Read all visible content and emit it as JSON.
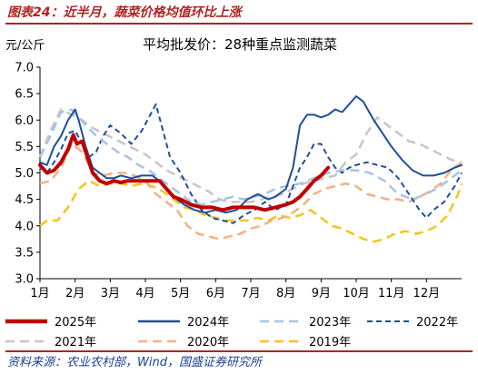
{
  "figure_label": "图表24：近半月，蔬菜价格均值环比上涨",
  "source": "资料来源：农业农村部，Wind，国盛证券研究所",
  "chart_data": {
    "type": "line",
    "title": "平均批发价：28种重点监测蔬菜",
    "ylabel": "元/公斤",
    "ylim": [
      3.0,
      7.0
    ],
    "yticks": [
      "3.0",
      "3.5",
      "4.0",
      "4.5",
      "5.0",
      "5.5",
      "6.0",
      "6.5",
      "7.0"
    ],
    "xlim": [
      1,
      13
    ],
    "xticks": [
      "1月",
      "2月",
      "3月",
      "4月",
      "5月",
      "6月",
      "7月",
      "8月",
      "9月",
      "10月",
      "11月",
      "12月"
    ],
    "grid": false,
    "legend_position": "bottom",
    "series": [
      {
        "name": "2025年",
        "color": "#c00000",
        "dash": "solid",
        "width": 4,
        "x": [
          1.0,
          1.2,
          1.4,
          1.6,
          1.8,
          1.95,
          2.05,
          2.2,
          2.35,
          2.5,
          2.7,
          2.9,
          3.1,
          3.3,
          3.5,
          3.8,
          4.1,
          4.4,
          4.6,
          4.8,
          5.0,
          5.3,
          5.6,
          5.9,
          6.2,
          6.5,
          6.8,
          7.1,
          7.4,
          7.7,
          8.0,
          8.2,
          8.4,
          8.6,
          8.8,
          9.0,
          9.2
        ],
        "y": [
          5.15,
          5.0,
          5.05,
          5.2,
          5.45,
          5.72,
          5.55,
          5.6,
          5.3,
          5.0,
          4.85,
          4.8,
          4.85,
          4.82,
          4.85,
          4.85,
          4.85,
          4.85,
          4.7,
          4.55,
          4.5,
          4.4,
          4.35,
          4.35,
          4.3,
          4.35,
          4.35,
          4.35,
          4.3,
          4.35,
          4.4,
          4.45,
          4.55,
          4.7,
          4.85,
          4.95,
          5.1
        ]
      },
      {
        "name": "2024年",
        "color": "#1f4e9a",
        "dash": "solid",
        "width": 2,
        "x": [
          1.0,
          1.2,
          1.4,
          1.6,
          1.8,
          2.0,
          2.1,
          2.3,
          2.5,
          2.7,
          2.9,
          3.1,
          3.3,
          3.6,
          3.9,
          4.2,
          4.5,
          4.8,
          5.1,
          5.4,
          5.7,
          6.0,
          6.3,
          6.6,
          6.9,
          7.2,
          7.5,
          7.7,
          8.0,
          8.2,
          8.4,
          8.6,
          8.8,
          9.0,
          9.2,
          9.4,
          9.6,
          9.8,
          10.0,
          10.2,
          10.5,
          10.8,
          11.0,
          11.3,
          11.6,
          11.9,
          12.2,
          12.5,
          12.8,
          13.0
        ],
        "y": [
          5.2,
          5.15,
          5.5,
          5.7,
          6.0,
          6.2,
          6.0,
          5.5,
          5.1,
          5.0,
          4.9,
          4.9,
          4.95,
          4.9,
          4.95,
          4.95,
          4.8,
          4.55,
          4.4,
          4.3,
          4.25,
          4.3,
          4.25,
          4.3,
          4.5,
          4.6,
          4.5,
          4.55,
          4.7,
          5.1,
          5.9,
          6.1,
          6.1,
          6.05,
          6.1,
          6.2,
          6.15,
          6.3,
          6.45,
          6.35,
          6.0,
          5.7,
          5.5,
          5.25,
          5.05,
          4.95,
          4.95,
          5.0,
          5.1,
          5.15
        ]
      },
      {
        "name": "2023年",
        "color": "#a6c3e6",
        "dash": "10,6",
        "width": 2.5,
        "x": [
          1.0,
          1.3,
          1.6,
          1.9,
          2.1,
          2.3,
          2.6,
          2.9,
          3.2,
          3.5,
          3.8,
          4.1,
          4.4,
          4.7,
          5.0,
          5.3,
          5.6,
          5.9,
          6.2,
          6.5,
          6.8,
          7.1,
          7.4,
          7.7,
          8.0,
          8.4,
          8.8,
          9.2,
          9.6,
          10.0,
          10.4,
          10.8,
          11.2,
          11.6,
          12.0,
          12.4,
          12.8,
          13.0
        ],
        "y": [
          5.3,
          5.7,
          6.15,
          6.2,
          6.05,
          5.9,
          5.7,
          5.55,
          5.4,
          5.3,
          5.15,
          5.05,
          4.9,
          4.75,
          4.6,
          4.45,
          4.4,
          4.45,
          4.5,
          4.55,
          4.5,
          4.55,
          4.6,
          4.7,
          4.75,
          4.8,
          4.9,
          5.0,
          5.05,
          5.05,
          5.0,
          4.85,
          4.6,
          4.5,
          4.6,
          4.75,
          4.95,
          5.05
        ]
      },
      {
        "name": "2022年",
        "color": "#1f4e9a",
        "dash": "6,4",
        "width": 2,
        "x": [
          1.0,
          1.2,
          1.4,
          1.6,
          1.8,
          2.0,
          2.2,
          2.4,
          2.6,
          2.8,
          3.0,
          3.3,
          3.6,
          3.9,
          4.1,
          4.3,
          4.5,
          4.7,
          5.0,
          5.3,
          5.6,
          5.9,
          6.2,
          6.5,
          6.8,
          7.1,
          7.4,
          7.7,
          8.0,
          8.2,
          8.4,
          8.6,
          8.8,
          9.0,
          9.2,
          9.4,
          9.6,
          9.8,
          10.0,
          10.3,
          10.6,
          10.9,
          11.2,
          11.5,
          11.8,
          12.0,
          12.2,
          12.5,
          12.8,
          13.0
        ],
        "y": [
          5.1,
          5.0,
          5.2,
          5.45,
          5.75,
          5.8,
          5.55,
          5.3,
          5.4,
          5.7,
          5.9,
          5.75,
          5.55,
          5.8,
          6.05,
          6.3,
          5.8,
          5.3,
          5.0,
          4.6,
          4.3,
          4.15,
          4.1,
          4.05,
          4.2,
          4.3,
          4.45,
          4.3,
          4.4,
          4.75,
          5.1,
          5.3,
          5.55,
          5.55,
          5.3,
          5.1,
          5.0,
          5.1,
          5.15,
          5.2,
          5.15,
          5.1,
          4.9,
          4.6,
          4.3,
          4.15,
          4.3,
          4.45,
          4.75,
          5.0
        ]
      },
      {
        "name": "2021年",
        "color": "#c6c6c6",
        "dash": "10,6",
        "width": 2.5,
        "x": [
          1.0,
          1.3,
          1.6,
          1.9,
          2.2,
          2.5,
          2.8,
          3.1,
          3.4,
          3.7,
          4.0,
          4.3,
          4.6,
          4.9,
          5.2,
          5.5,
          5.8,
          6.1,
          6.4,
          6.7,
          7.0,
          7.3,
          7.6,
          7.9,
          8.2,
          8.5,
          8.8,
          9.1,
          9.4,
          9.7,
          10.0,
          10.3,
          10.6,
          10.9,
          11.2,
          11.5,
          11.8,
          12.1,
          12.4,
          12.7,
          13.0
        ],
        "y": [
          5.3,
          5.8,
          6.2,
          6.1,
          6.0,
          5.85,
          5.75,
          5.65,
          5.55,
          5.45,
          5.35,
          5.2,
          5.05,
          4.95,
          4.85,
          4.75,
          4.65,
          4.5,
          4.45,
          4.45,
          4.45,
          4.5,
          4.55,
          4.6,
          4.7,
          4.8,
          4.85,
          4.9,
          4.95,
          5.2,
          5.35,
          5.75,
          6.05,
          5.9,
          5.75,
          5.6,
          5.55,
          5.45,
          5.35,
          5.25,
          5.2
        ]
      },
      {
        "name": "2020年",
        "color": "#f4b183",
        "dash": "10,6",
        "width": 2.5,
        "x": [
          1.0,
          1.3,
          1.6,
          1.9,
          2.2,
          2.5,
          2.8,
          3.1,
          3.4,
          3.7,
          4.0,
          4.3,
          4.6,
          4.9,
          5.2,
          5.5,
          5.8,
          6.1,
          6.4,
          6.7,
          7.0,
          7.3,
          7.6,
          7.9,
          8.2,
          8.5,
          8.8,
          9.1,
          9.4,
          9.7,
          10.0,
          10.3,
          10.6,
          10.9,
          11.2,
          11.5,
          11.8,
          12.1,
          12.4,
          12.7,
          13.0
        ],
        "y": [
          4.8,
          4.85,
          5.1,
          5.55,
          5.4,
          5.0,
          4.95,
          5.0,
          5.0,
          4.95,
          4.85,
          4.6,
          4.45,
          4.3,
          4.0,
          3.85,
          3.8,
          3.75,
          3.8,
          3.85,
          3.95,
          4.0,
          4.1,
          4.15,
          4.25,
          4.4,
          4.6,
          4.7,
          4.75,
          4.8,
          4.75,
          4.6,
          4.55,
          4.5,
          4.5,
          4.45,
          4.55,
          4.65,
          4.8,
          5.05,
          5.2
        ]
      },
      {
        "name": "2019年",
        "color": "#f5c518",
        "dash": "10,6",
        "width": 2.5,
        "x": [
          1.0,
          1.2,
          1.5,
          1.8,
          2.1,
          2.4,
          2.7,
          3.0,
          3.3,
          3.6,
          3.9,
          4.2,
          4.5,
          4.8,
          5.1,
          5.4,
          5.7,
          6.0,
          6.3,
          6.6,
          6.9,
          7.2,
          7.5,
          7.8,
          8.1,
          8.4,
          8.7,
          9.0,
          9.3,
          9.6,
          9.9,
          10.2,
          10.5,
          10.8,
          11.1,
          11.4,
          11.7,
          12.0,
          12.3,
          12.6,
          12.9,
          13.0
        ],
        "y": [
          4.0,
          4.1,
          4.1,
          4.35,
          4.7,
          4.85,
          4.75,
          4.8,
          4.8,
          4.75,
          4.8,
          4.75,
          4.65,
          4.5,
          4.35,
          4.3,
          4.2,
          4.15,
          4.1,
          4.1,
          4.1,
          4.15,
          4.1,
          4.2,
          4.15,
          4.2,
          4.3,
          4.15,
          4.0,
          3.95,
          3.85,
          3.75,
          3.7,
          3.75,
          3.85,
          3.9,
          3.85,
          3.9,
          4.0,
          4.2,
          4.6,
          4.8
        ]
      }
    ]
  }
}
